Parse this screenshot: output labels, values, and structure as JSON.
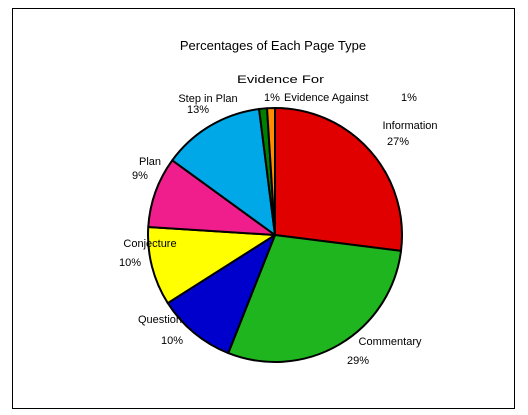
{
  "chart_data": {
    "type": "pie",
    "title": "Percentages of Each Page Type",
    "start_angle_deg": 0,
    "direction": "clockwise",
    "slices": [
      {
        "name": "Information",
        "value": 27,
        "label": "27%",
        "color": "#e00000"
      },
      {
        "name": "Commentary",
        "value": 29,
        "label": "29%",
        "color": "#1fb51f"
      },
      {
        "name": "Question",
        "value": 10,
        "label": "10%",
        "color": "#0000cc"
      },
      {
        "name": "Conjecture",
        "value": 10,
        "label": "10%",
        "color": "#ffff00"
      },
      {
        "name": "Plan",
        "value": 9,
        "label": "9%",
        "color": "#f01e8c"
      },
      {
        "name": "Step in Plan",
        "value": 13,
        "label": "13%",
        "color": "#00a8e8"
      },
      {
        "name": "Evidence For",
        "value": 1,
        "label": "1%",
        "color": "#008000"
      },
      {
        "name": "Evidence Against",
        "value": 1,
        "label": "1%",
        "color": "#ff8c00"
      }
    ]
  }
}
